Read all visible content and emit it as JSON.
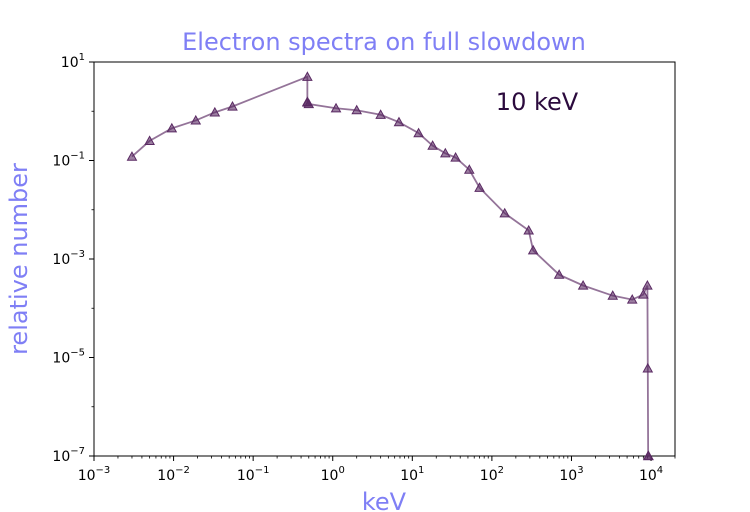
{
  "chart_data": {
    "type": "line",
    "title": "Electron spectra on full slowdown",
    "xlabel": "keV",
    "ylabel": "relative number",
    "xscale": "log",
    "yscale": "log",
    "xlim": [
      0.001,
      20000
    ],
    "ylim": [
      1e-07,
      10
    ],
    "grid": false,
    "annotation": "10 keV",
    "colors": {
      "series": "#5a2a63",
      "title": "#7f7ff5",
      "axis_label": "#7f7ff5",
      "annotation": "#2b0a3d"
    },
    "marker": "triangle-up",
    "x_ticks": [
      {
        "value": 0.001,
        "base": "10",
        "exp": "−3"
      },
      {
        "value": 0.01,
        "base": "10",
        "exp": "−2"
      },
      {
        "value": 0.1,
        "base": "10",
        "exp": "−1"
      },
      {
        "value": 1,
        "base": "10",
        "exp": "0"
      },
      {
        "value": 10,
        "base": "10",
        "exp": "1"
      },
      {
        "value": 100,
        "base": "10",
        "exp": "2"
      },
      {
        "value": 1000,
        "base": "10",
        "exp": "3"
      },
      {
        "value": 10000,
        "base": "10",
        "exp": "4"
      }
    ],
    "y_ticks": [
      {
        "value": 1e-07,
        "base": "10",
        "exp": "−7"
      },
      {
        "value": 1e-05,
        "base": "10",
        "exp": "−5"
      },
      {
        "value": 0.001,
        "base": "10",
        "exp": "−3"
      },
      {
        "value": 0.1,
        "base": "10",
        "exp": "−1"
      },
      {
        "value": 10,
        "base": "10",
        "exp": "1"
      }
    ],
    "series": [
      {
        "x": [
          0.003,
          0.005,
          0.0095,
          0.019,
          0.033,
          0.055,
          0.48,
          0.48,
          0.48,
          0.5,
          1.1,
          2.0,
          4.0,
          6.8,
          12,
          18,
          26,
          35,
          52,
          70,
          145,
          290,
          330,
          700,
          1400,
          3300,
          5800,
          8000,
          9000,
          9100,
          9200,
          9300
        ],
        "y": [
          0.12,
          0.25,
          0.45,
          0.65,
          0.95,
          1.25,
          5.0,
          1.5,
          1.55,
          1.4,
          1.15,
          1.05,
          0.85,
          0.6,
          0.36,
          0.2,
          0.14,
          0.115,
          0.065,
          0.028,
          0.0085,
          0.0038,
          0.0015,
          0.00048,
          0.00029,
          0.00018,
          0.00015,
          0.00019,
          0.00029,
          6e-06,
          1e-07,
          1e-07
        ]
      }
    ]
  }
}
